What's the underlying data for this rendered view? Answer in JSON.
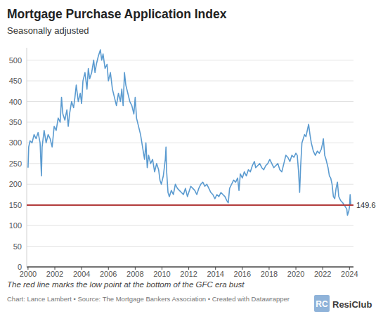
{
  "chart_data": {
    "type": "line",
    "title": "Mortgage Purchase Application Index",
    "subtitle": "Seasonally adjusted",
    "note": "The red line marks the low point at the bottom of the GFC era bust",
    "source": "Chart: Lance Lambert • Source: The Mortgage Bankers Association • Created with Datawrapper",
    "logo": "ResiClub",
    "logo_mark": "RC",
    "reference_line": {
      "value": 149.6
    },
    "grid": true,
    "xlim": [
      1999.9,
      2024.3
    ],
    "xticks": [
      2000,
      2002,
      2004,
      2006,
      2008,
      2010,
      2012,
      2014,
      2016,
      2018,
      2020,
      2022,
      2024
    ],
    "ylim": [
      0,
      530
    ],
    "yticks": [
      0,
      50,
      100,
      150,
      200,
      250,
      300,
      350,
      400,
      450,
      500
    ],
    "x": [
      2000.0,
      2000.05,
      2000.15,
      2000.3,
      2000.45,
      2000.6,
      2000.75,
      2000.9,
      2001.0,
      2001.05,
      2001.2,
      2001.35,
      2001.5,
      2001.65,
      2001.8,
      2001.95,
      2002.1,
      2002.25,
      2002.4,
      2002.5,
      2002.6,
      2002.75,
      2002.9,
      2003.0,
      2003.1,
      2003.25,
      2003.4,
      2003.5,
      2003.6,
      2003.75,
      2003.9,
      2004.0,
      2004.1,
      2004.25,
      2004.4,
      2004.5,
      2004.6,
      2004.75,
      2004.9,
      2005.0,
      2005.1,
      2005.25,
      2005.4,
      2005.5,
      2005.6,
      2005.75,
      2005.9,
      2006.0,
      2006.15,
      2006.3,
      2006.45,
      2006.6,
      2006.75,
      2006.9,
      2007.0,
      2007.1,
      2007.2,
      2007.3,
      2007.45,
      2007.6,
      2007.75,
      2007.9,
      2008.0,
      2008.1,
      2008.25,
      2008.4,
      2008.55,
      2008.7,
      2008.8,
      2008.9,
      2009.0,
      2009.15,
      2009.3,
      2009.45,
      2009.6,
      2009.75,
      2009.85,
      2009.95,
      2010.1,
      2010.25,
      2010.3,
      2010.35,
      2010.45,
      2010.55,
      2010.7,
      2010.85,
      2011.0,
      2011.15,
      2011.3,
      2011.45,
      2011.6,
      2011.75,
      2011.9,
      2012.0,
      2012.15,
      2012.3,
      2012.45,
      2012.6,
      2012.75,
      2012.9,
      2013.05,
      2013.2,
      2013.35,
      2013.5,
      2013.65,
      2013.8,
      2013.95,
      2014.1,
      2014.25,
      2014.4,
      2014.55,
      2014.7,
      2014.85,
      2014.95,
      2015.05,
      2015.2,
      2015.35,
      2015.5,
      2015.65,
      2015.75,
      2015.85,
      2016.0,
      2016.15,
      2016.3,
      2016.45,
      2016.6,
      2016.75,
      2016.9,
      2017.0,
      2017.15,
      2017.3,
      2017.45,
      2017.6,
      2017.75,
      2017.9,
      2018.05,
      2018.2,
      2018.35,
      2018.5,
      2018.65,
      2018.8,
      2018.95,
      2019.1,
      2019.25,
      2019.4,
      2019.55,
      2019.7,
      2019.85,
      2020.0,
      2020.1,
      2020.2,
      2020.28,
      2020.35,
      2020.45,
      2020.55,
      2020.65,
      2020.75,
      2020.85,
      2020.95,
      2021.05,
      2021.15,
      2021.3,
      2021.45,
      2021.6,
      2021.75,
      2021.9,
      2022.0,
      2022.05,
      2022.15,
      2022.25,
      2022.4,
      2022.5,
      2022.6,
      2022.7,
      2022.8,
      2022.9,
      2023.0,
      2023.1,
      2023.2,
      2023.35,
      2023.5,
      2023.6,
      2023.7,
      2023.8,
      2023.85,
      2023.95,
      2024.0,
      2024.05,
      2024.1,
      2024.2
    ],
    "series": [
      {
        "name": "Mortgage Purchase Application Index",
        "color": "#5b9bd0",
        "values": [
          240,
          290,
          305,
          300,
          320,
          310,
          325,
          300,
          220,
          290,
          330,
          300,
          320,
          310,
          290,
          340,
          330,
          360,
          350,
          410,
          370,
          355,
          380,
          340,
          370,
          400,
          385,
          410,
          440,
          400,
          420,
          395,
          450,
          470,
          430,
          480,
          455,
          470,
          500,
          470,
          490,
          510,
          525,
          500,
          515,
          480,
          490,
          450,
          470,
          430,
          410,
          390,
          420,
          400,
          430,
          390,
          470,
          440,
          420,
          400,
          390,
          370,
          410,
          360,
          340,
          320,
          290,
          260,
          300,
          240,
          270,
          250,
          260,
          230,
          250,
          235,
          210,
          200,
          220,
          260,
          290,
          230,
          180,
          170,
          185,
          175,
          200,
          190,
          185,
          180,
          175,
          190,
          170,
          180,
          195,
          190,
          185,
          175,
          190,
          200,
          205,
          195,
          200,
          190,
          180,
          175,
          165,
          175,
          170,
          180,
          175,
          170,
          160,
          155,
          190,
          200,
          210,
          205,
          215,
          185,
          225,
          215,
          230,
          220,
          235,
          230,
          245,
          255,
          240,
          245,
          250,
          240,
          235,
          245,
          250,
          260,
          250,
          240,
          245,
          250,
          235,
          230,
          250,
          270,
          265,
          255,
          270,
          265,
          275,
          270,
          230,
          180,
          240,
          300,
          310,
          320,
          315,
          330,
          345,
          320,
          300,
          280,
          270,
          280,
          275,
          285,
          300,
          310,
          270,
          260,
          240,
          220,
          215,
          200,
          170,
          165,
          190,
          205,
          170,
          160,
          155,
          150,
          145,
          140,
          125,
          135,
          145,
          175,
          150,
          149.6
        ]
      }
    ]
  }
}
